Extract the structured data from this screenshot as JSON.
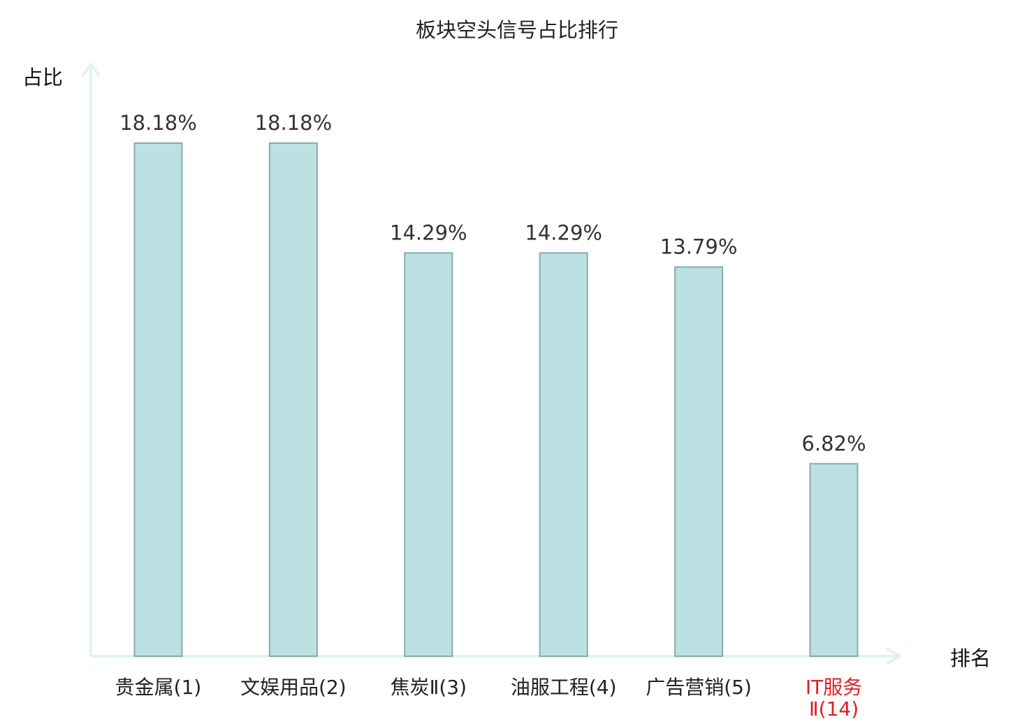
{
  "chart_data": {
    "type": "bar",
    "title": "板块空头信号占比排行",
    "ylabel": "占比",
    "xlabel": "排名",
    "ylim": [
      0,
      20
    ],
    "grid": false,
    "legend": "none",
    "categories": [
      {
        "label": "贵金属(1)",
        "highlight": false
      },
      {
        "label": "文娱用品(2)",
        "highlight": false
      },
      {
        "label": "焦炭Ⅱ(3)",
        "highlight": false
      },
      {
        "label": "油服工程(4)",
        "highlight": false
      },
      {
        "label": "广告营销(5)",
        "highlight": false
      },
      {
        "label": "IT服务Ⅱ(14)",
        "highlight": true
      }
    ],
    "values": [
      18.18,
      18.18,
      14.29,
      14.29,
      13.79,
      6.82
    ],
    "value_labels": [
      "18.18%",
      "18.18%",
      "14.29%",
      "14.29%",
      "13.79%",
      "6.82%"
    ],
    "colors": {
      "bar_fill": "#bce1e3",
      "bar_stroke": "#8aa9ab",
      "axis": "#e0f3f0",
      "highlight_text": "#e02020",
      "normal_text": "#222222"
    }
  }
}
